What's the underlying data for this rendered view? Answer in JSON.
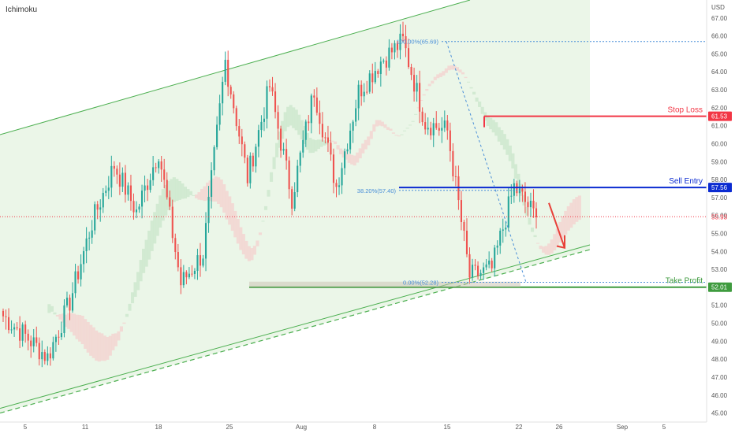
{
  "indicator_label": "Ichimoku",
  "currency_label": "USD",
  "colors": {
    "up": "#26a69a",
    "down": "#ef5350",
    "channel_line": "#4caf50",
    "channel_fill": "#e7f5e4",
    "cloud_green": "#cfe9cf",
    "cloud_red": "#f3d7d3",
    "stop": "#f23645",
    "entry": "#0b2bd1",
    "profit": "#3f9b3f",
    "current": "#f23645",
    "fib": "#4a8fd8",
    "arrow": "#e8413a"
  },
  "chart_data": {
    "type": "candlestick",
    "y_range": [
      44.5,
      68.0
    ],
    "y_ticks": [
      "45.00",
      "46.00",
      "47.00",
      "48.00",
      "49.00",
      "50.00",
      "51.00",
      "52.00",
      "53.00",
      "54.00",
      "55.00",
      "56.00",
      "57.00",
      "58.00",
      "59.00",
      "60.00",
      "61.00",
      "62.00",
      "63.00",
      "64.00",
      "65.00",
      "66.00",
      "67.00"
    ],
    "x_labels": [
      "5",
      "11",
      "18",
      "25",
      "Aug",
      "8",
      "15",
      "22",
      "26",
      "Sep",
      "5"
    ],
    "levels": {
      "stop_loss": {
        "label": "Stop Loss",
        "value": 61.53,
        "tag": "61.53"
      },
      "sell_entry": {
        "label": "Sell Entry",
        "value": 57.56,
        "tag": "57.56"
      },
      "take_profit": {
        "label": "Take Profit",
        "value": 52.01,
        "tag": "52.01"
      },
      "current": {
        "value": 55.93,
        "tag": "55.93"
      }
    },
    "fib": [
      {
        "label": "100.00%(65.69)",
        "value": 65.69
      },
      {
        "label": "38.20%(57.40)",
        "value": 57.4
      },
      {
        "label": "0.00%(52.28)",
        "value": 52.28
      }
    ],
    "channel": {
      "upper_start": 60.5,
      "upper_end": 68.6,
      "lower_start": 45.0,
      "lower_end": 54.1
    },
    "key_prices": [
      50.4,
      49.3,
      48.1,
      51.2,
      55.6,
      58.8,
      56.2,
      59.6,
      52.2,
      53.9,
      64.6,
      58.1,
      63.2,
      57.0,
      63.0,
      57.6,
      62.9,
      64.6,
      65.7,
      61.2,
      60.7,
      52.6,
      53.0,
      57.6,
      55.9
    ]
  }
}
